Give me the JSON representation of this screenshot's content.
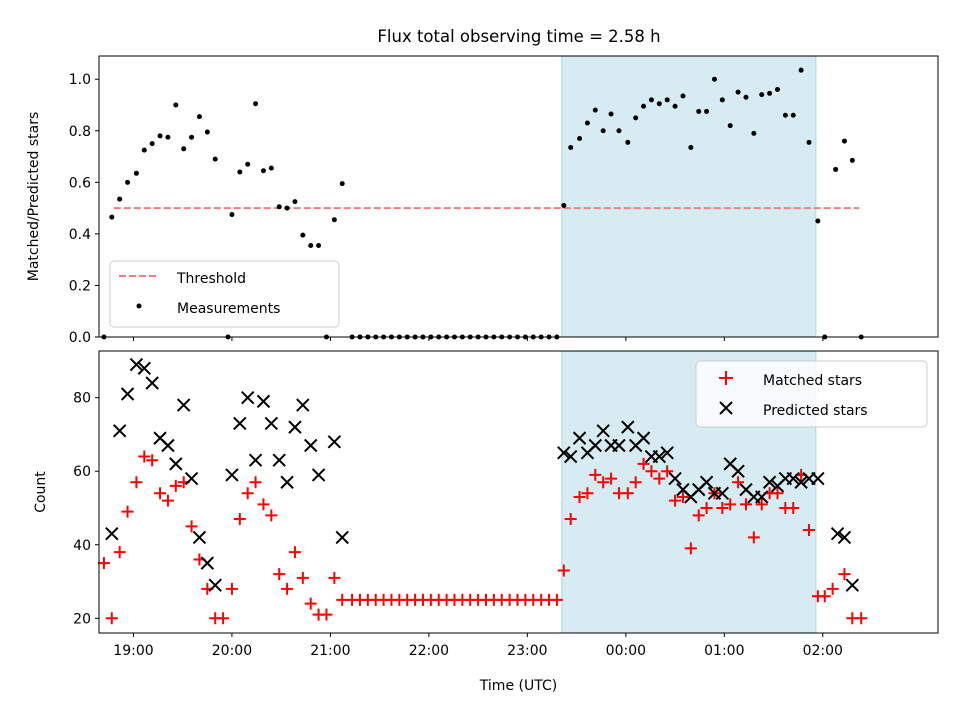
{
  "figure_title": "Flux total observing time = 2.58 h",
  "colors": {
    "threshold": "#f08080",
    "measurement": "#000000",
    "matched": "#ff0000",
    "predicted": "#000000",
    "shade": "#add8e6"
  },
  "chart_data": [
    {
      "type": "scatter",
      "title": "Flux total observing time = 2.58 h",
      "xlabel": "",
      "ylabel": "Matched/Predicted stars",
      "xlim": [
        -5.35,
        3.17
      ],
      "ylim": [
        0,
        1.09
      ],
      "x_unit": "hours relative to 00:00 UTC",
      "yticks": [
        "0.0",
        "0.2",
        "0.4",
        "0.6",
        "0.8",
        "1.0"
      ],
      "ytick_values": [
        0,
        0.2,
        0.4,
        0.6,
        0.8,
        1.0
      ],
      "shaded_span": [
        -0.65,
        1.93
      ],
      "legend": {
        "position": "lower-left",
        "entries": [
          "Threshold",
          "Measurements"
        ]
      },
      "threshold": {
        "name": "Threshold",
        "x": [
          -5.2,
          2.37
        ],
        "y": 0.5,
        "style": "dashed"
      },
      "series": [
        {
          "name": "Measurements",
          "marker": "dot",
          "points": [
            [
              -5.3,
              0
            ],
            [
              -5.22,
              0.465
            ],
            [
              -5.14,
              0.535
            ],
            [
              -5.06,
              0.6
            ],
            [
              -4.97,
              0.635
            ],
            [
              -4.89,
              0.725
            ],
            [
              -4.81,
              0.75
            ],
            [
              -4.73,
              0.78
            ],
            [
              -4.65,
              0.775
            ],
            [
              -4.57,
              0.9
            ],
            [
              -4.49,
              0.73
            ],
            [
              -4.41,
              0.775
            ],
            [
              -4.33,
              0.855
            ],
            [
              -4.25,
              0.795
            ],
            [
              -4.17,
              0.69
            ],
            [
              -4.04,
              0
            ],
            [
              -4.0,
              0.475
            ],
            [
              -3.92,
              0.64
            ],
            [
              -3.84,
              0.67
            ],
            [
              -3.76,
              0.905
            ],
            [
              -3.68,
              0.645
            ],
            [
              -3.6,
              0.655
            ],
            [
              -3.52,
              0.505
            ],
            [
              -3.44,
              0.5
            ],
            [
              -3.36,
              0.525
            ],
            [
              -3.28,
              0.395
            ],
            [
              -3.2,
              0.355
            ],
            [
              -3.12,
              0.355
            ],
            [
              -3.04,
              0
            ],
            [
              -2.96,
              0.455
            ],
            [
              -2.88,
              0.595
            ],
            [
              -2.78,
              0
            ],
            [
              -2.7,
              0
            ],
            [
              -2.62,
              0
            ],
            [
              -2.54,
              0
            ],
            [
              -2.46,
              0
            ],
            [
              -2.38,
              0
            ],
            [
              -2.3,
              0
            ],
            [
              -2.22,
              0
            ],
            [
              -2.14,
              0
            ],
            [
              -2.06,
              0
            ],
            [
              -1.98,
              0
            ],
            [
              -1.9,
              0
            ],
            [
              -1.82,
              0
            ],
            [
              -1.74,
              0
            ],
            [
              -1.66,
              0
            ],
            [
              -1.58,
              0
            ],
            [
              -1.5,
              0
            ],
            [
              -1.42,
              0
            ],
            [
              -1.34,
              0
            ],
            [
              -1.26,
              0
            ],
            [
              -1.18,
              0
            ],
            [
              -1.1,
              0
            ],
            [
              -1.02,
              0
            ],
            [
              -0.94,
              0
            ],
            [
              -0.86,
              0
            ],
            [
              -0.78,
              0
            ],
            [
              -0.7,
              0
            ],
            [
              -0.63,
              0.51
            ],
            [
              -0.56,
              0.735
            ],
            [
              -0.47,
              0.77
            ],
            [
              -0.39,
              0.83
            ],
            [
              -0.31,
              0.88
            ],
            [
              -0.23,
              0.8
            ],
            [
              -0.15,
              0.865
            ],
            [
              -0.07,
              0.8
            ],
            [
              0.02,
              0.755
            ],
            [
              0.1,
              0.85
            ],
            [
              0.18,
              0.895
            ],
            [
              0.26,
              0.92
            ],
            [
              0.34,
              0.905
            ],
            [
              0.42,
              0.92
            ],
            [
              0.5,
              0.895
            ],
            [
              0.58,
              0.935
            ],
            [
              0.66,
              0.735
            ],
            [
              0.74,
              0.875
            ],
            [
              0.82,
              0.875
            ],
            [
              0.9,
              1.0
            ],
            [
              0.98,
              0.92
            ],
            [
              1.06,
              0.82
            ],
            [
              1.14,
              0.95
            ],
            [
              1.22,
              0.93
            ],
            [
              1.3,
              0.79
            ],
            [
              1.38,
              0.94
            ],
            [
              1.46,
              0.945
            ],
            [
              1.54,
              0.96
            ],
            [
              1.62,
              0.86
            ],
            [
              1.7,
              0.86
            ],
            [
              1.78,
              1.035
            ],
            [
              1.86,
              0.755
            ],
            [
              1.95,
              0.45
            ],
            [
              2.02,
              0
            ],
            [
              2.13,
              0.65
            ],
            [
              2.22,
              0.76
            ],
            [
              2.3,
              0.685
            ],
            [
              2.39,
              0
            ]
          ]
        }
      ]
    },
    {
      "type": "scatter",
      "title": "",
      "xlabel": "Time (UTC)",
      "ylabel": "Count",
      "xlim": [
        -5.35,
        3.17
      ],
      "ylim": [
        16,
        92.7
      ],
      "x_unit": "hours relative to 00:00 UTC",
      "xticks": [
        "19:00",
        "20:00",
        "21:00",
        "22:00",
        "23:00",
        "00:00",
        "01:00",
        "02:00"
      ],
      "xtick_values": [
        -5,
        -4,
        -3,
        -2,
        -1,
        0,
        1,
        2
      ],
      "yticks": [
        "20",
        "40",
        "60",
        "80"
      ],
      "ytick_values": [
        20,
        40,
        60,
        80
      ],
      "shaded_span": [
        -0.65,
        1.93
      ],
      "legend": {
        "position": "top-right",
        "entries": [
          "Matched stars",
          "Predicted stars"
        ]
      },
      "series": [
        {
          "name": "Matched stars",
          "marker": "plus",
          "points": [
            [
              -5.3,
              35
            ],
            [
              -5.22,
              20
            ],
            [
              -5.14,
              38
            ],
            [
              -5.06,
              49
            ],
            [
              -4.97,
              57
            ],
            [
              -4.89,
              64
            ],
            [
              -4.81,
              63
            ],
            [
              -4.73,
              54
            ],
            [
              -4.65,
              52
            ],
            [
              -4.57,
              56
            ],
            [
              -4.49,
              57
            ],
            [
              -4.41,
              45
            ],
            [
              -4.33,
              36
            ],
            [
              -4.25,
              28
            ],
            [
              -4.17,
              20
            ],
            [
              -4.09,
              20
            ],
            [
              -4.0,
              28
            ],
            [
              -3.92,
              47
            ],
            [
              -3.84,
              54
            ],
            [
              -3.76,
              57
            ],
            [
              -3.68,
              51
            ],
            [
              -3.6,
              48
            ],
            [
              -3.52,
              32
            ],
            [
              -3.44,
              28
            ],
            [
              -3.36,
              38
            ],
            [
              -3.28,
              31
            ],
            [
              -3.2,
              24
            ],
            [
              -3.12,
              21
            ],
            [
              -3.04,
              21
            ],
            [
              -2.96,
              31
            ],
            [
              -2.88,
              25
            ],
            [
              -2.78,
              25
            ],
            [
              -2.7,
              25
            ],
            [
              -2.62,
              25
            ],
            [
              -2.54,
              25
            ],
            [
              -2.46,
              25
            ],
            [
              -2.38,
              25
            ],
            [
              -2.3,
              25
            ],
            [
              -2.22,
              25
            ],
            [
              -2.14,
              25
            ],
            [
              -2.06,
              25
            ],
            [
              -1.98,
              25
            ],
            [
              -1.9,
              25
            ],
            [
              -1.82,
              25
            ],
            [
              -1.74,
              25
            ],
            [
              -1.66,
              25
            ],
            [
              -1.58,
              25
            ],
            [
              -1.5,
              25
            ],
            [
              -1.42,
              25
            ],
            [
              -1.34,
              25
            ],
            [
              -1.26,
              25
            ],
            [
              -1.18,
              25
            ],
            [
              -1.1,
              25
            ],
            [
              -1.02,
              25
            ],
            [
              -0.94,
              25
            ],
            [
              -0.86,
              25
            ],
            [
              -0.78,
              25
            ],
            [
              -0.7,
              25
            ],
            [
              -0.63,
              33
            ],
            [
              -0.56,
              47
            ],
            [
              -0.47,
              53
            ],
            [
              -0.39,
              54
            ],
            [
              -0.31,
              59
            ],
            [
              -0.23,
              57
            ],
            [
              -0.15,
              58
            ],
            [
              -0.07,
              54
            ],
            [
              0.02,
              54
            ],
            [
              0.1,
              57
            ],
            [
              0.18,
              62
            ],
            [
              0.26,
              60
            ],
            [
              0.34,
              58
            ],
            [
              0.42,
              60
            ],
            [
              0.5,
              52
            ],
            [
              0.58,
              53
            ],
            [
              0.66,
              39
            ],
            [
              0.74,
              48
            ],
            [
              0.82,
              50
            ],
            [
              0.9,
              54
            ],
            [
              0.98,
              50
            ],
            [
              1.06,
              51
            ],
            [
              1.14,
              57
            ],
            [
              1.22,
              51
            ],
            [
              1.3,
              42
            ],
            [
              1.38,
              51
            ],
            [
              1.46,
              54
            ],
            [
              1.54,
              54
            ],
            [
              1.62,
              50
            ],
            [
              1.7,
              50
            ],
            [
              1.78,
              59
            ],
            [
              1.86,
              44
            ],
            [
              1.95,
              26
            ],
            [
              2.02,
              26
            ],
            [
              2.1,
              28
            ],
            [
              2.22,
              32
            ],
            [
              2.3,
              20
            ],
            [
              2.39,
              20
            ]
          ]
        },
        {
          "name": "Predicted stars",
          "marker": "x",
          "points": [
            [
              -5.22,
              43
            ],
            [
              -5.14,
              71
            ],
            [
              -5.06,
              81
            ],
            [
              -4.97,
              89
            ],
            [
              -4.89,
              88
            ],
            [
              -4.81,
              84
            ],
            [
              -4.73,
              69
            ],
            [
              -4.65,
              67
            ],
            [
              -4.57,
              62
            ],
            [
              -4.49,
              78
            ],
            [
              -4.41,
              58
            ],
            [
              -4.33,
              42
            ],
            [
              -4.25,
              35
            ],
            [
              -4.17,
              29
            ],
            [
              -4.0,
              59
            ],
            [
              -3.92,
              73
            ],
            [
              -3.84,
              80
            ],
            [
              -3.76,
              63
            ],
            [
              -3.68,
              79
            ],
            [
              -3.6,
              73
            ],
            [
              -3.52,
              63
            ],
            [
              -3.44,
              57
            ],
            [
              -3.36,
              72
            ],
            [
              -3.28,
              78
            ],
            [
              -3.2,
              67
            ],
            [
              -3.12,
              59
            ],
            [
              -2.96,
              68
            ],
            [
              -2.88,
              42
            ],
            [
              -0.63,
              65
            ],
            [
              -0.56,
              64
            ],
            [
              -0.47,
              69
            ],
            [
              -0.39,
              65
            ],
            [
              -0.31,
              67
            ],
            [
              -0.23,
              71
            ],
            [
              -0.15,
              67
            ],
            [
              -0.07,
              67
            ],
            [
              0.02,
              72
            ],
            [
              0.1,
              67
            ],
            [
              0.18,
              69
            ],
            [
              0.26,
              64
            ],
            [
              0.34,
              64
            ],
            [
              0.42,
              65
            ],
            [
              0.5,
              58
            ],
            [
              0.58,
              55
            ],
            [
              0.66,
              53
            ],
            [
              0.74,
              55
            ],
            [
              0.82,
              57
            ],
            [
              0.9,
              54
            ],
            [
              0.98,
              54
            ],
            [
              1.06,
              62
            ],
            [
              1.14,
              60
            ],
            [
              1.22,
              55
            ],
            [
              1.3,
              53
            ],
            [
              1.38,
              53
            ],
            [
              1.46,
              57
            ],
            [
              1.54,
              56
            ],
            [
              1.62,
              58
            ],
            [
              1.7,
              58
            ],
            [
              1.78,
              57
            ],
            [
              1.86,
              58
            ],
            [
              1.95,
              58
            ],
            [
              2.15,
              43
            ],
            [
              2.22,
              42
            ],
            [
              2.3,
              29
            ]
          ]
        }
      ]
    }
  ]
}
